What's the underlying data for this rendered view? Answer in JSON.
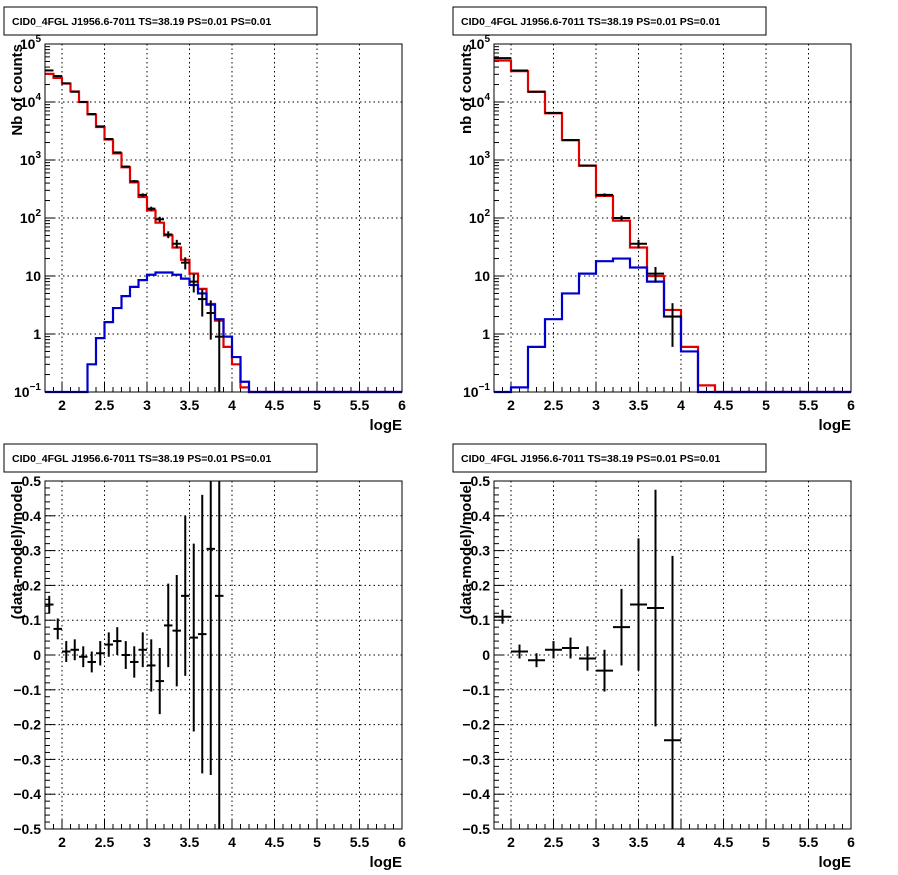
{
  "colors": {
    "data": "#000000",
    "total_model": "#e00000",
    "source_model": "#0000cc",
    "grid": "#000000"
  },
  "chart_data": [
    {
      "type": "line",
      "title": "CID0_4FGL J1956.6-7011 TS=38.19 PS=0.01 PS=0.01",
      "xlabel": "logE",
      "ylabel": "Nb of counts",
      "xlim": [
        1.8,
        6.0
      ],
      "ylim": [
        0.1,
        100000
      ],
      "log_y": true,
      "grid": true,
      "x_ticks": [
        "2",
        "2.5",
        "3",
        "3.5",
        "4",
        "4.5",
        "5",
        "5.5",
        "6"
      ],
      "y_ticks": [
        "10^-1",
        "1",
        "10",
        "10^2",
        "10^3",
        "10^4",
        "10^5"
      ],
      "bin_edges": [
        1.8,
        1.9,
        2.0,
        2.1,
        2.2,
        2.3,
        2.4,
        2.5,
        2.6,
        2.7,
        2.8,
        2.9,
        3.0,
        3.1,
        3.2,
        3.3,
        3.4,
        3.5,
        3.6,
        3.7,
        3.8,
        3.9,
        4.0,
        4.1,
        4.2,
        4.3,
        4.4,
        4.5,
        4.6,
        4.7,
        4.8,
        4.9,
        5.0,
        5.1,
        5.2,
        5.3,
        5.4,
        5.5,
        5.6,
        5.7,
        5.8,
        5.9,
        6.0
      ],
      "series": [
        {
          "kind": "data",
          "x": [
            1.85,
            1.95,
            2.05,
            2.15,
            2.25,
            2.35,
            2.45,
            2.55,
            2.65,
            2.75,
            2.85,
            2.95,
            3.05,
            3.15,
            3.25,
            3.35,
            3.45,
            3.55,
            3.65,
            3.75,
            3.85
          ],
          "values": [
            35000,
            28000,
            21000,
            15000,
            10000,
            6200,
            3800,
            2300,
            1350,
            770,
            430,
            250,
            145,
            95,
            52,
            36,
            17,
            8,
            4,
            2.3,
            0.9
          ],
          "yerr": [
            190,
            170,
            145,
            120,
            100,
            79,
            62,
            48,
            37,
            28,
            21,
            16,
            12,
            10,
            7,
            6,
            4,
            2.8,
            2,
            1.5,
            0.9
          ]
        },
        {
          "kind": "total_model",
          "values": [
            30500,
            26000,
            20800,
            15200,
            10000,
            6100,
            3700,
            2250,
            1300,
            750,
            410,
            230,
            135,
            83,
            50,
            31,
            19,
            11,
            6,
            3.3,
            1.7,
            0.6,
            0.3,
            0.12,
            0.05,
            0,
            0,
            0,
            0,
            0,
            0,
            0,
            0,
            0,
            0,
            0,
            0,
            0,
            0,
            0,
            0,
            0
          ]
        },
        {
          "kind": "source_model",
          "values": [
            0,
            0,
            0,
            0,
            0.05,
            0.3,
            0.85,
            1.6,
            2.8,
            4.5,
            6.5,
            8.5,
            10.5,
            11.5,
            11.5,
            10.5,
            9,
            7,
            5,
            3.2,
            1.8,
            0.9,
            0.4,
            0.15,
            0.05,
            0,
            0,
            0,
            0,
            0,
            0,
            0,
            0,
            0,
            0,
            0,
            0,
            0,
            0,
            0,
            0,
            0
          ]
        }
      ]
    },
    {
      "type": "line",
      "title": "CID0_4FGL J1956.6-7011 TS=38.19 PS=0.01 PS=0.01",
      "xlabel": "logE",
      "ylabel": "nb of counts",
      "xlim": [
        1.8,
        6.0
      ],
      "ylim": [
        0.1,
        100000
      ],
      "log_y": true,
      "grid": true,
      "x_ticks": [
        "2",
        "2.5",
        "3",
        "3.5",
        "4",
        "4.5",
        "5",
        "5.5",
        "6"
      ],
      "y_ticks": [
        "10^-1",
        "1",
        "10",
        "10^2",
        "10^3",
        "10^4",
        "10^5"
      ],
      "bin_edges": [
        1.8,
        2.0,
        2.2,
        2.4,
        2.6,
        2.8,
        3.0,
        3.2,
        3.4,
        3.6,
        3.8,
        4.0,
        4.2,
        4.4,
        4.6,
        4.8,
        5.0,
        5.2,
        5.4,
        5.6,
        5.8,
        6.0
      ],
      "series": [
        {
          "kind": "data",
          "x": [
            1.9,
            2.1,
            2.3,
            2.5,
            2.7,
            2.9,
            3.1,
            3.3,
            3.5,
            3.7,
            3.9
          ],
          "values": [
            57000,
            35000,
            15000,
            6500,
            2200,
            800,
            250,
            100,
            36,
            11,
            2
          ],
          "yerr": [
            240,
            190,
            120,
            80,
            47,
            28,
            16,
            10,
            6,
            3.3,
            1.4
          ]
        },
        {
          "kind": "total_model",
          "values": [
            52000,
            34000,
            15000,
            6400,
            2200,
            800,
            240,
            90,
            31,
            10,
            2.6,
            0.6,
            0.13,
            0,
            0,
            0,
            0,
            0,
            0,
            0,
            0
          ]
        },
        {
          "kind": "source_model",
          "values": [
            0.1,
            0.12,
            0.6,
            1.8,
            5,
            11,
            18,
            20,
            14,
            8,
            2,
            0.5,
            0.1,
            0.1,
            0.1,
            0.1,
            0.1,
            0.1,
            0.1,
            0.1,
            0.1
          ]
        }
      ]
    },
    {
      "type": "scatter",
      "title": "CID0_4FGL J1956.6-7011 TS=38.19 PS=0.01 PS=0.01",
      "xlabel": "logE",
      "ylabel": "(data-model)/model",
      "xlim": [
        1.8,
        6.0
      ],
      "ylim": [
        -0.5,
        0.5
      ],
      "grid": true,
      "x_ticks": [
        "2",
        "2.5",
        "3",
        "3.5",
        "4",
        "4.5",
        "5",
        "5.5",
        "6"
      ],
      "y_ticks": [
        "-0.5",
        "-0.4",
        "-0.3",
        "-0.2",
        "-0.1",
        "0",
        "0.1",
        "0.2",
        "0.3",
        "0.4",
        "0.5"
      ],
      "xerr": 0.05,
      "series": [
        {
          "kind": "data",
          "x": [
            1.85,
            1.95,
            2.05,
            2.15,
            2.25,
            2.35,
            2.45,
            2.55,
            2.65,
            2.75,
            2.85,
            2.95,
            3.05,
            3.15,
            3.25,
            3.35,
            3.45,
            3.55,
            3.65,
            3.75,
            3.85
          ],
          "values": [
            0.145,
            0.075,
            0.01,
            0.015,
            -0.005,
            -0.02,
            0.005,
            0.03,
            0.04,
            0.0,
            -0.02,
            0.015,
            -0.03,
            -0.075,
            0.085,
            0.07,
            0.17,
            0.05,
            0.06,
            0.305,
            0.17
          ],
          "yerr": [
            0.025,
            0.03,
            0.03,
            0.03,
            0.03,
            0.03,
            0.035,
            0.035,
            0.04,
            0.04,
            0.045,
            0.05,
            0.075,
            0.095,
            0.12,
            0.16,
            0.23,
            0.27,
            0.4,
            0.65,
            1.1
          ]
        }
      ]
    },
    {
      "type": "scatter",
      "title": "CID0_4FGL J1956.6-7011 TS=38.19 PS=0.01 PS=0.01",
      "xlabel": "logE",
      "ylabel": "(data-model)/model",
      "xlim": [
        1.8,
        6.0
      ],
      "ylim": [
        -0.5,
        0.5
      ],
      "grid": true,
      "x_ticks": [
        "2",
        "2.5",
        "3",
        "3.5",
        "4",
        "4.5",
        "5",
        "5.5",
        "6"
      ],
      "y_ticks": [
        "-0.5",
        "-0.4",
        "-0.3",
        "-0.2",
        "-0.1",
        "0",
        "0.1",
        "0.2",
        "0.3",
        "0.4",
        "0.5"
      ],
      "xerr": 0.1,
      "series": [
        {
          "kind": "data",
          "x": [
            1.9,
            2.1,
            2.3,
            2.5,
            2.7,
            2.9,
            3.1,
            3.3,
            3.5,
            3.7,
            3.9
          ],
          "values": [
            0.11,
            0.01,
            -0.015,
            0.015,
            0.02,
            -0.01,
            -0.045,
            0.08,
            0.145,
            0.135,
            -0.245
          ],
          "yerr": [
            0.02,
            0.02,
            0.02,
            0.025,
            0.03,
            0.035,
            0.06,
            0.11,
            0.19,
            0.34,
            0.53
          ]
        }
      ]
    }
  ]
}
